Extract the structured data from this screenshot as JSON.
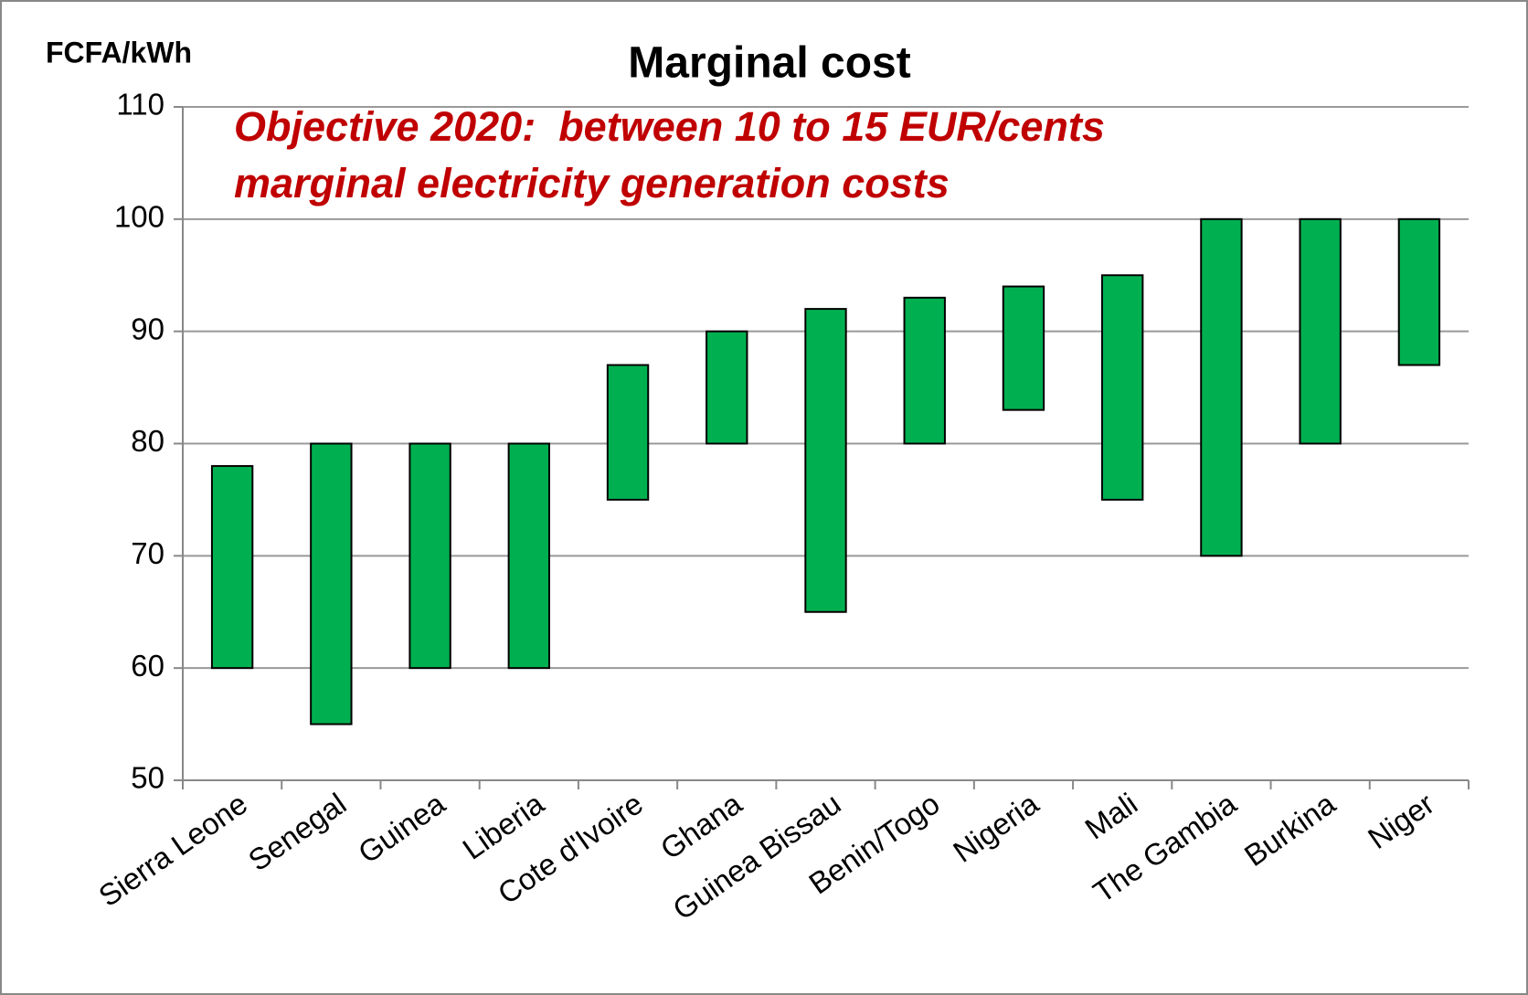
{
  "chart_data": {
    "type": "floating-bar",
    "title": "Marginal cost",
    "y_label": "FCFA/kWh",
    "annotation": [
      "Objective 2020:  between 10 to 15 EUR/cents",
      "marginal electricity generation costs"
    ],
    "categories": [
      "Sierra Leone",
      "Senegal",
      "Guinea",
      "Liberia",
      "Cote d'Ivoire",
      "Ghana",
      "Guinea Bissau",
      "Benin/Togo",
      "Nigeria",
      "Mali",
      "The Gambia",
      "Burkina",
      "Niger"
    ],
    "low": [
      60,
      55,
      60,
      60,
      75,
      80,
      65,
      80,
      83,
      75,
      70,
      80,
      87
    ],
    "high": [
      78,
      80,
      80,
      80,
      87,
      90,
      92,
      93,
      94,
      95,
      100,
      100,
      100
    ],
    "color": "#00b050",
    "ylim": [
      50,
      110
    ],
    "yticks": [
      50,
      60,
      70,
      80,
      90,
      100,
      110
    ],
    "grid": true
  }
}
